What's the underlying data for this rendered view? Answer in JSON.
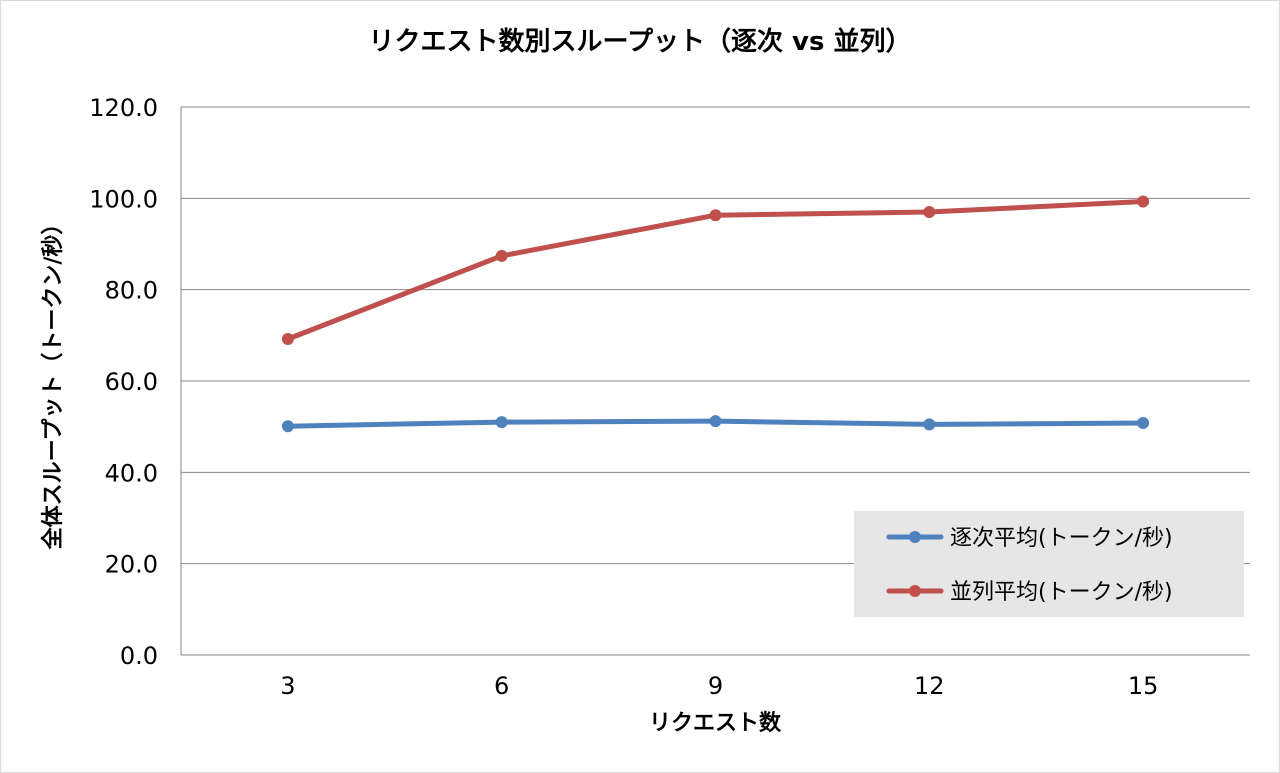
{
  "chart_data": {
    "type": "line",
    "title": "リクエスト数別スループット（逐次 vs 並列）",
    "xlabel": "リクエスト数",
    "ylabel": "全体スループット（トークン/秒）",
    "categories": [
      "3",
      "6",
      "9",
      "12",
      "15"
    ],
    "ylim": [
      0,
      120
    ],
    "yticks": [
      "0.0",
      "20.0",
      "40.0",
      "60.0",
      "80.0",
      "100.0",
      "120.0"
    ],
    "grid": true,
    "legend_position": "bottom-right",
    "series": [
      {
        "name": "逐次平均(トークン/秒)",
        "color": "#4f81bd",
        "values": [
          50.1,
          51.0,
          51.2,
          50.5,
          50.8
        ]
      },
      {
        "name": "並列平均(トークン/秒)",
        "color": "#c0504d",
        "values": [
          69.2,
          87.4,
          96.3,
          97.0,
          99.3
        ]
      }
    ]
  }
}
